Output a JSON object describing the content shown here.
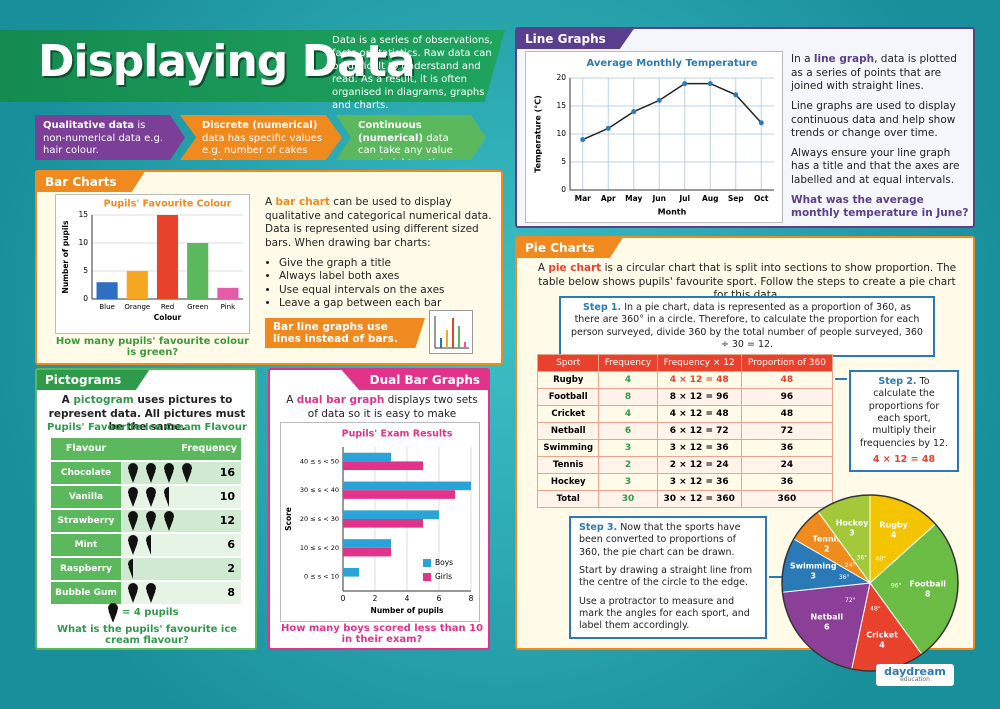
{
  "header": {
    "title": "Displaying Data",
    "intro": "Data is a series of observations, facts or statistics. Raw data can be difficult to understand and read. As a result, it is often organised in diagrams, graphs and charts."
  },
  "data_types": [
    {
      "name": "Qualitative data",
      "text": "is non-numerical data e.g. hair colour."
    },
    {
      "name": "Discrete (numerical)",
      "text": "data has specific values e.g. number of cakes sold."
    },
    {
      "name": "Continuous (numerical)",
      "text": "data can take any value e.g. height or time."
    }
  ],
  "bar_charts": {
    "heading": "Bar Charts",
    "chart": {
      "type": "bar",
      "title": "Pupils' Favourite Colour",
      "y_label": "Number of pupils",
      "x_label": "Colour",
      "categories": [
        "Blue",
        "Orange",
        "Red",
        "Green",
        "Pink"
      ],
      "values": [
        3,
        5,
        15,
        10,
        2
      ],
      "colors": [
        "#2f6fc0",
        "#f5a623",
        "#e8412c",
        "#5cb85c",
        "#e45ca8"
      ],
      "ylim": [
        0,
        15
      ],
      "yticks": [
        0,
        5,
        10,
        15
      ],
      "grid": true
    },
    "intro": {
      "before": "A ",
      "keyword": "bar chart",
      "after": " can be used to display qualitative and categorical numerical data. Data is represented using different sized bars. When drawing bar charts:"
    },
    "bullets": [
      "Give the graph a title",
      "Always label both axes",
      "Use equal intervals on the axes",
      "Leave a gap between each bar"
    ],
    "question": "How many pupils' favourite colour is green?",
    "tip": "Bar line graphs use lines instead of bars."
  },
  "line_graphs": {
    "heading": "Line Graphs",
    "chart": {
      "type": "line",
      "title": "Average Monthly Temperature",
      "y_label": "Temperature (°C)",
      "x_label": "Month",
      "categories": [
        "Mar",
        "Apr",
        "May",
        "Jun",
        "Jul",
        "Aug",
        "Sep",
        "Oct"
      ],
      "values": [
        9,
        11,
        14,
        16,
        19,
        19,
        17,
        12
      ],
      "color": "#222222",
      "ylim": [
        0,
        20
      ],
      "yticks": [
        0,
        5,
        10,
        15,
        20
      ],
      "grid": true
    },
    "intro": {
      "before": "In a ",
      "keyword": "line graph",
      "after": ", data is plotted as a series of points that are joined with straight lines."
    },
    "paragraphs": [
      "Line graphs are used to display continuous data and help show trends or change over time.",
      "Always ensure your line graph has a title and that the axes are labelled and at equal intervals."
    ],
    "question": "What was the average monthly temperature in June?"
  },
  "pictograms": {
    "heading": "Pictograms",
    "intro": {
      "before": "A ",
      "keyword": "pictogram",
      "after": " uses pictures to represent data. All pictures must be the same."
    },
    "title": "Pupils' Favourite Ice Cream Flavour",
    "headers": [
      "Flavour",
      "Frequency"
    ],
    "categories": [
      "Chocolate",
      "Vanilla",
      "Strawberry",
      "Mint",
      "Raspberry",
      "Bubble Gum"
    ],
    "values": [
      16,
      10,
      12,
      6,
      2,
      8
    ],
    "per_icon": 4,
    "key_label": "= 4 pupils",
    "question": "What is the pupils' favourite ice cream flavour?"
  },
  "dual_bar_graphs": {
    "heading": "Dual Bar Graphs",
    "intro": {
      "before": "A ",
      "keyword": "dual bar graph",
      "after": " displays two sets of data so it is easy to make comparisons."
    },
    "chart": {
      "type": "bar",
      "orientation": "horizontal",
      "title": "Pupils' Exam Results",
      "y_label": "Score",
      "x_label": "Number of pupils",
      "categories": [
        "40 ≤ s < 50",
        "30 ≤ s < 40",
        "20 ≤ s < 30",
        "10 ≤ s < 20",
        "0 ≤ s < 10"
      ],
      "series": [
        {
          "name": "Boys",
          "color": "#2aa3d8",
          "values": [
            3,
            8,
            6,
            3,
            1
          ]
        },
        {
          "name": "Girls",
          "color": "#e0338a",
          "values": [
            5,
            7,
            5,
            3,
            0
          ]
        }
      ],
      "xlim": [
        0,
        8
      ],
      "xticks": [
        0,
        2,
        4,
        6,
        8
      ],
      "grid": true,
      "legend": "lower-right"
    },
    "question": "How many boys scored less than 10 in their exam?"
  },
  "pie_charts": {
    "heading": "Pie Charts",
    "intro": {
      "before": "A ",
      "keyword": "pie chart",
      "after": " is a circular chart that is split into sections to show proportion. The table below shows pupils' favourite sport. Follow the steps to create a pie chart for this data."
    },
    "step1": {
      "label": "Step 1.",
      "text": "In a pie chart, data is represented as a proportion of 360, as there are 360° in a circle. Therefore, to calculate the proportion for each person surveyed, divide 360 by the total number of people surveyed, 360 ÷ 30 = 12."
    },
    "table": {
      "headers": [
        "Sport",
        "Frequency",
        "Frequency × 12",
        "Proportion of 360"
      ],
      "rows": [
        [
          "Rugby",
          4,
          "4 × 12 = 48",
          48
        ],
        [
          "Football",
          8,
          "8 × 12 = 96",
          96
        ],
        [
          "Cricket",
          4,
          "4 × 12 = 48",
          48
        ],
        [
          "Netball",
          6,
          "6 × 12 = 72",
          72
        ],
        [
          "Swimming",
          3,
          "3 × 12 = 36",
          36
        ],
        [
          "Tennis",
          2,
          "2 × 12 = 24",
          24
        ],
        [
          "Hockey",
          3,
          "3 × 12 = 36",
          36
        ],
        [
          "Total",
          30,
          "30 × 12 = 360",
          360
        ]
      ]
    },
    "step2": {
      "label": "Step 2.",
      "text": "To calculate the proportions for each sport, multiply their frequencies by 12.",
      "example": "4 × 12 = 48"
    },
    "step3": {
      "label": "Step 3.",
      "paragraphs": [
        "Now that the sports have been converted to proportions of 360, the pie chart can be drawn.",
        "Start by drawing a straight line from the centre of the circle to the edge.",
        "Use a protractor to measure and mark the angles for each sport, and label them accordingly."
      ]
    },
    "chart": {
      "type": "pie",
      "categories": [
        "Rugby",
        "Football",
        "Cricket",
        "Netball",
        "Swimming",
        "Tennis",
        "Hockey"
      ],
      "values": [
        48,
        96,
        48,
        72,
        36,
        24,
        36
      ],
      "value_labels": [
        "48°",
        "96°",
        "48°",
        "72°",
        "36°",
        "24°",
        "36°"
      ],
      "counts": [
        4,
        8,
        4,
        6,
        3,
        2,
        3
      ],
      "colors": [
        "#f5c400",
        "#6cbd45",
        "#e8412c",
        "#8b3f96",
        "#2a7ab8",
        "#f08c1e",
        "#a3c93a"
      ]
    }
  },
  "logo": {
    "name": "daydream",
    "sub": "education"
  }
}
